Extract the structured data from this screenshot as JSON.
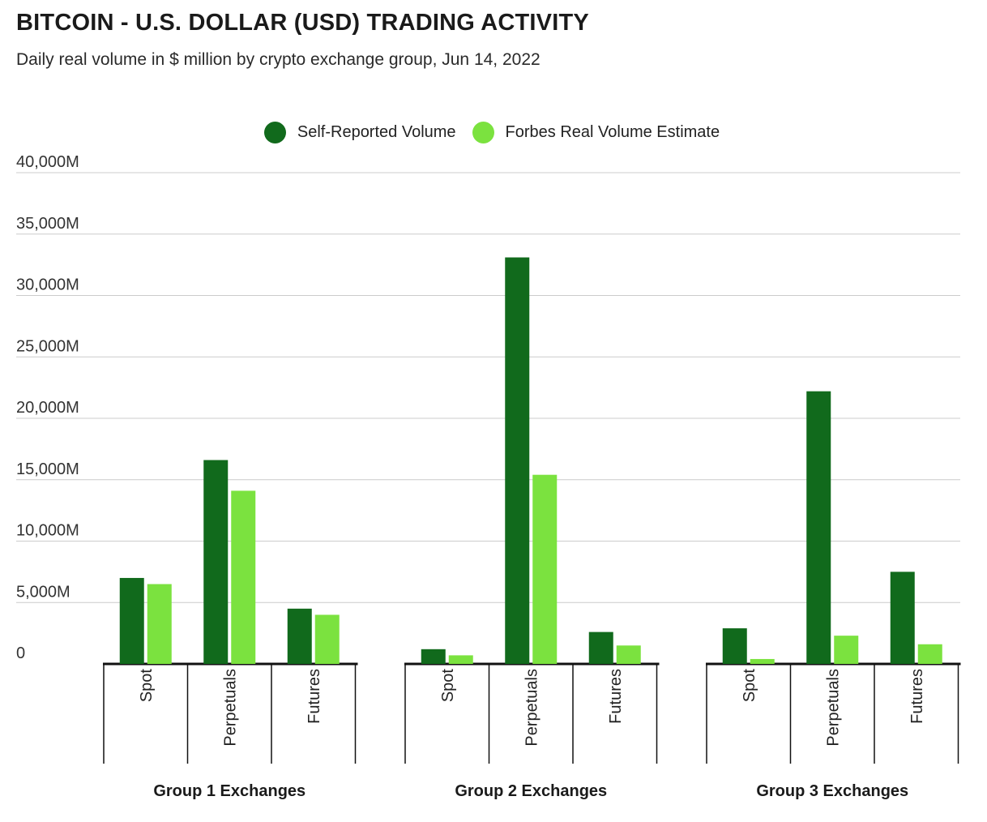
{
  "title": "BITCOIN - U.S. DOLLAR (USD) TRADING ACTIVITY",
  "subtitle": "Daily real volume in $ million by crypto exchange group, Jun 14, 2022",
  "colors": {
    "self_reported": "#116a1c",
    "forbes": "#7be23f",
    "grid": "#cccccc",
    "axis": "#111111"
  },
  "chart_data": {
    "type": "bar",
    "title": "BITCOIN - U.S. DOLLAR (USD) TRADING ACTIVITY",
    "subtitle": "Daily real volume in $ million by crypto exchange group, Jun 14, 2022",
    "ylim": [
      0,
      40000
    ],
    "yticks": [
      "0",
      "5,000M",
      "10,000M",
      "15,000M",
      "20,000M",
      "25,000M",
      "30,000M",
      "35,000M",
      "40,000M"
    ],
    "grid": true,
    "legend_position": "top-center",
    "groups": [
      {
        "name": "Group 1 Exchanges",
        "categories": [
          "Spot",
          "Perpetuals",
          "Futures"
        ]
      },
      {
        "name": "Group 2 Exchanges",
        "categories": [
          "Spot",
          "Perpetuals",
          "Futures"
        ]
      },
      {
        "name": "Group 3 Exchanges",
        "categories": [
          "Spot",
          "Perpetuals",
          "Futures"
        ]
      }
    ],
    "series": [
      {
        "name": "Self-Reported Volume",
        "values": [
          7000,
          16600,
          4500,
          1200,
          33100,
          2600,
          2900,
          22200,
          7500
        ]
      },
      {
        "name": "Forbes Real Volume Estimate",
        "values": [
          6500,
          14100,
          4000,
          700,
          15400,
          1500,
          400,
          2300,
          1600
        ]
      }
    ]
  }
}
